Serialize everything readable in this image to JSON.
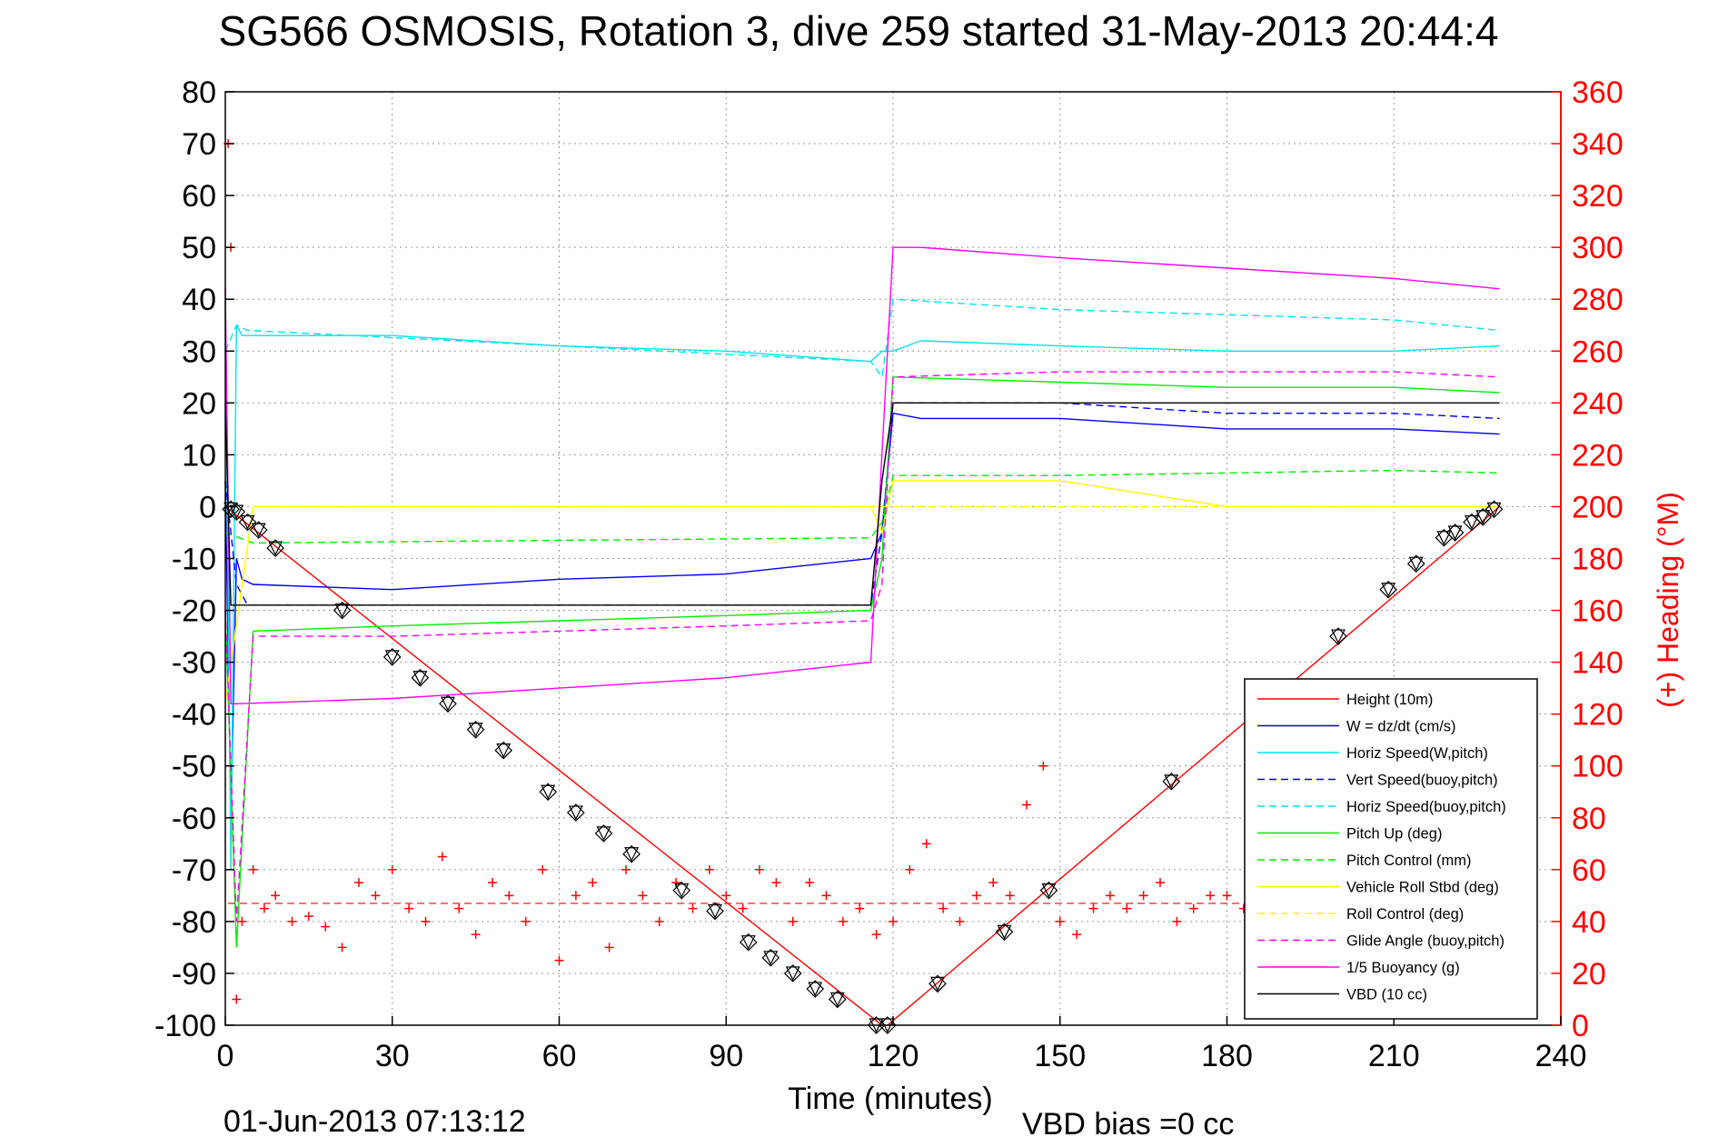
{
  "chart_data": {
    "type": "line",
    "title": "SG566 OSMOSIS, Rotation 3, dive 259 started 31-May-2013 20:44:4",
    "xlabel": "Time (minutes)",
    "ylabel_right": "(+) Heading (°M)",
    "footer_left": "01-Jun-2013 07:13:12",
    "footer_right": "VBD bias =0 cc",
    "xlim": [
      0,
      240
    ],
    "ylim_left": [
      -100,
      80
    ],
    "ylim_right": [
      0,
      360
    ],
    "x_ticks": [
      "0",
      "30",
      "60",
      "90",
      "120",
      "150",
      "180",
      "210",
      "240"
    ],
    "y_ticks_left": [
      "80",
      "70",
      "60",
      "50",
      "40",
      "30",
      "20",
      "10",
      "0",
      "-10",
      "-20",
      "-30",
      "-40",
      "-50",
      "-60",
      "-70",
      "-80",
      "-90",
      "-100"
    ],
    "y_ticks_right": [
      "360",
      "340",
      "320",
      "300",
      "280",
      "260",
      "240",
      "220",
      "200",
      "180",
      "160",
      "140",
      "120",
      "100",
      "80",
      "60",
      "40",
      "20",
      "0"
    ],
    "grid": true,
    "legend_position": "bottom-right",
    "colors": {
      "red": "#ff0000",
      "blue": "#0000ff",
      "cyan": "#00e5ee",
      "green": "#00ee00",
      "yellow": "#ffff00",
      "magenta": "#ff00ff",
      "black": "#000000"
    },
    "series": [
      {
        "name": "Height (10m)",
        "color": "#ff0000",
        "style": "solid",
        "x": [
          0,
          118,
          119,
          229
        ],
        "y": [
          0,
          -100,
          -100,
          0
        ]
      },
      {
        "name": "W = dz/dt (cm/s)",
        "color": "#0000ff",
        "style": "solid",
        "x": [
          0,
          1,
          2,
          3,
          5,
          30,
          60,
          90,
          116,
          118,
          120,
          125,
          150,
          180,
          210,
          229
        ],
        "y": [
          5,
          -60,
          -10,
          -14,
          -15,
          -16,
          -14,
          -13,
          -10,
          -5,
          18,
          17,
          17,
          15,
          15,
          14
        ]
      },
      {
        "name": "Horiz Speed(W,pitch)",
        "color": "#00e5ee",
        "style": "solid",
        "x": [
          0,
          1,
          2,
          3,
          5,
          30,
          60,
          90,
          116,
          118,
          120,
          125,
          150,
          180,
          210,
          229
        ],
        "y": [
          40,
          -70,
          35,
          33,
          33,
          33,
          31,
          30,
          28,
          30,
          30,
          32,
          31,
          30,
          30,
          31
        ]
      },
      {
        "name": "Vert Speed(buoy,pitch)",
        "color": "#0000ff",
        "style": "dashed",
        "x": [
          0,
          2,
          4,
          116,
          118,
          120,
          150,
          180,
          210,
          229
        ],
        "y": [
          5,
          -15,
          -19,
          -19,
          -5,
          20,
          20,
          18,
          18,
          17
        ]
      },
      {
        "name": "Horiz Speed(buoy,pitch)",
        "color": "#00e5ee",
        "style": "dashed",
        "x": [
          0,
          2,
          4,
          116,
          118,
          120,
          150,
          180,
          210,
          229
        ],
        "y": [
          30,
          35,
          34,
          28,
          25,
          40,
          38,
          37,
          36,
          34
        ]
      },
      {
        "name": "Pitch Up (deg)",
        "color": "#00ee00",
        "style": "solid",
        "x": [
          0,
          2,
          5,
          30,
          60,
          90,
          116,
          118,
          120,
          150,
          180,
          210,
          229
        ],
        "y": [
          -20,
          -85,
          -24,
          -23,
          -22,
          -21,
          -20,
          -10,
          25,
          24,
          23,
          23,
          22
        ]
      },
      {
        "name": "Pitch Control (mm)",
        "color": "#00ee00",
        "style": "dashed",
        "x": [
          0,
          5,
          60,
          116,
          118,
          120,
          150,
          180,
          210,
          229
        ],
        "y": [
          -5,
          -7,
          -6.5,
          -6,
          -3,
          6,
          6,
          6.5,
          7,
          6.5
        ]
      },
      {
        "name": "Vehicle Roll Stbd (deg)",
        "color": "#ffff00",
        "style": "solid",
        "x": [
          0,
          5,
          30,
          60,
          90,
          116,
          118,
          120,
          150,
          180,
          210,
          229
        ],
        "y": [
          -38,
          0,
          0,
          0,
          0,
          0,
          -5,
          5,
          5,
          0,
          0,
          0
        ]
      },
      {
        "name": "Roll Control (deg)",
        "color": "#ffff00",
        "style": "dashed",
        "x": [
          0,
          5,
          30,
          60,
          90,
          116,
          118,
          120,
          150,
          180,
          210,
          229
        ],
        "y": [
          -38,
          0,
          0,
          0,
          0,
          0,
          0,
          0,
          0,
          0,
          0,
          0
        ]
      },
      {
        "name": "Glide Angle (buoy,pitch)",
        "color": "#ff00ff",
        "style": "dashed",
        "x": [
          0,
          2,
          5,
          30,
          60,
          90,
          116,
          118,
          120,
          150,
          180,
          210,
          229
        ],
        "y": [
          -20,
          -80,
          -25,
          -25,
          -24,
          -23,
          -22,
          -15,
          25,
          26,
          26,
          26,
          25
        ]
      },
      {
        "name": "1/5 Buoyancy (g)",
        "color": "#ff00ff",
        "style": "solid",
        "x": [
          0,
          1,
          2,
          30,
          60,
          90,
          116,
          120,
          125,
          150,
          180,
          210,
          229
        ],
        "y": [
          42,
          -38,
          -38,
          -37,
          -35,
          -33,
          -30,
          50,
          50,
          48,
          46,
          44,
          42
        ]
      },
      {
        "name": "VBD (10 cc)",
        "color": "#000000",
        "style": "solid",
        "x": [
          0,
          1,
          2,
          116,
          118,
          120,
          229
        ],
        "y": [
          20,
          -19,
          -19,
          -19,
          5,
          20,
          20
        ]
      }
    ],
    "heading": {
      "color": "#ff0000",
      "marker": "+",
      "axis": "right",
      "mean": 47,
      "x": [
        0.5,
        1,
        2,
        3,
        5,
        7,
        9,
        12,
        15,
        18,
        21,
        24,
        27,
        30,
        33,
        36,
        39,
        42,
        45,
        48,
        51,
        54,
        57,
        60,
        63,
        66,
        69,
        72,
        75,
        78,
        81,
        84,
        87,
        90,
        93,
        96,
        99,
        102,
        105,
        108,
        111,
        114,
        117,
        120,
        123,
        126,
        129,
        132,
        135,
        138,
        141,
        144,
        147,
        150,
        153,
        156,
        159,
        162,
        165,
        168,
        171,
        174,
        177,
        180,
        183,
        186
      ],
      "y": [
        340,
        300,
        10,
        40,
        60,
        45,
        50,
        40,
        42,
        38,
        30,
        55,
        50,
        60,
        45,
        40,
        65,
        45,
        35,
        55,
        50,
        40,
        60,
        25,
        50,
        55,
        30,
        60,
        50,
        40,
        55,
        45,
        60,
        50,
        45,
        60,
        55,
        40,
        55,
        50,
        40,
        45,
        35,
        40,
        60,
        70,
        45,
        40,
        50,
        55,
        50,
        85,
        100,
        40,
        35,
        45,
        50,
        45,
        50,
        55,
        40,
        45,
        50,
        50,
        45,
        50
      ]
    },
    "markers": {
      "description_free": true,
      "color": "#000000",
      "x": [
        1,
        2,
        4,
        6,
        9,
        21,
        30,
        35,
        40,
        45,
        50,
        58,
        63,
        68,
        73,
        82,
        88,
        94,
        98,
        102,
        106,
        110,
        117,
        119,
        128,
        140,
        148,
        170,
        200,
        209,
        214,
        219,
        221,
        224,
        226,
        228
      ],
      "y": [
        -0.5,
        -1,
        -3,
        -4.5,
        -8,
        -20,
        -29,
        -33,
        -38,
        -43,
        -47,
        -55,
        -59,
        -63,
        -67,
        -74,
        -78,
        -84,
        -87,
        -90,
        -93,
        -95,
        -100,
        -100,
        -92,
        -82,
        -74,
        -53,
        -25,
        -16,
        -11,
        -6,
        -5,
        -3,
        -2,
        -0.5
      ]
    }
  }
}
